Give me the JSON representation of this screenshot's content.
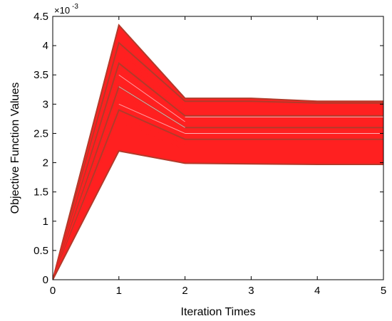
{
  "chart_data": {
    "type": "line",
    "xlabel": "Iteration Times",
    "ylabel": "Objective Function Values",
    "exponent_base": "×10",
    "exponent_power": "-3",
    "xlim": [
      0,
      5
    ],
    "ylim": [
      0,
      4.5
    ],
    "xticks": [
      0,
      1,
      2,
      3,
      4,
      5
    ],
    "yticks": [
      0,
      0.5,
      1,
      1.5,
      2,
      2.5,
      3,
      3.5,
      4,
      4.5
    ],
    "x": [
      0,
      1,
      2,
      3,
      4,
      5
    ],
    "colors": {
      "fill_lines": "#ff2020",
      "edge_lines": "#b23a2a",
      "highlight": "#ffd6dc"
    },
    "series": [
      {
        "values": [
          0,
          4.35,
          3.1,
          3.1,
          3.05,
          3.05
        ]
      },
      {
        "values": [
          0,
          4.05,
          3.05,
          3.05,
          3.02,
          3.02
        ]
      },
      {
        "values": [
          0,
          3.95,
          2.98,
          2.98,
          2.97,
          2.97
        ]
      },
      {
        "values": [
          0,
          3.9,
          2.9,
          2.9,
          2.9,
          2.9
        ]
      },
      {
        "values": [
          0,
          3.8,
          2.85,
          2.85,
          2.85,
          2.85
        ]
      },
      {
        "values": [
          0,
          3.7,
          2.8,
          2.8,
          2.8,
          2.8
        ]
      },
      {
        "values": [
          0,
          3.6,
          2.75,
          2.75,
          2.75,
          2.75
        ]
      },
      {
        "values": [
          0,
          3.5,
          2.7,
          2.7,
          2.7,
          2.7
        ]
      },
      {
        "values": [
          0,
          3.4,
          2.65,
          2.65,
          2.65,
          2.65
        ]
      },
      {
        "values": [
          0,
          3.3,
          2.6,
          2.6,
          2.6,
          2.6
        ]
      },
      {
        "values": [
          0,
          3.2,
          2.55,
          2.55,
          2.55,
          2.55
        ]
      },
      {
        "values": [
          0,
          3.1,
          2.5,
          2.5,
          2.5,
          2.5
        ]
      },
      {
        "values": [
          0,
          3.0,
          2.45,
          2.45,
          2.45,
          2.45
        ]
      },
      {
        "values": [
          0,
          2.9,
          2.4,
          2.4,
          2.4,
          2.4
        ]
      },
      {
        "values": [
          0,
          2.8,
          2.3,
          2.28,
          2.27,
          2.27
        ]
      },
      {
        "values": [
          0,
          2.7,
          2.22,
          2.22,
          2.22,
          2.22
        ]
      },
      {
        "values": [
          0,
          2.2,
          1.99,
          1.98,
          1.97,
          1.97
        ]
      }
    ]
  }
}
